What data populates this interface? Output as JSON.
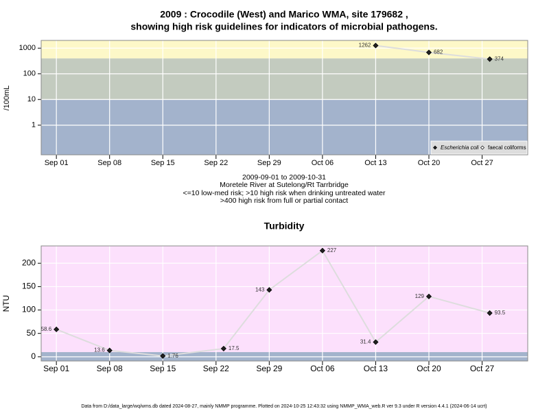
{
  "chart_data": [
    {
      "type": "line",
      "title": [
        "2009 : Crocodile (West) and Marico WMA, site 179682 ,",
        "showing high risk guidelines for indicators of microbial pathogens."
      ],
      "y_label": "/100mL",
      "log_y": true,
      "x": [
        "2009-10-13",
        "2009-10-20",
        "2009-10-28"
      ],
      "series": [
        {
          "name": "Escherichia coli",
          "color": "#222222",
          "line_color": "#dddddd",
          "values": [
            1262,
            682,
            374
          ]
        },
        {
          "name": "faecal coliforms",
          "color": "#ffffff",
          "line_color": "#dddddd",
          "values": [
            null,
            null,
            null
          ]
        }
      ],
      "xlim": [
        "2009-08-30",
        "2009-11-02"
      ],
      "xticks": [
        {
          "value": "2009-09-01",
          "label": "Sep 01"
        },
        {
          "value": "2009-09-08",
          "label": "Sep 08"
        },
        {
          "value": "2009-09-15",
          "label": "Sep 15"
        },
        {
          "value": "2009-09-22",
          "label": "Sep 22"
        },
        {
          "value": "2009-09-29",
          "label": "Sep 29"
        },
        {
          "value": "2009-10-06",
          "label": "Oct 06"
        },
        {
          "value": "2009-10-13",
          "label": "Oct 13"
        },
        {
          "value": "2009-10-20",
          "label": "Oct 20"
        },
        {
          "value": "2009-10-27",
          "label": "Oct 27"
        }
      ],
      "ylim": [
        0.07,
        2000
      ],
      "yticks": [
        1,
        10,
        100,
        1000
      ],
      "grid": true,
      "legend": "bottom-right",
      "bands": [
        {
          "from": null,
          "to": 10,
          "color": "#a3b3cc"
        },
        {
          "from": 10,
          "to": 400,
          "color": "#c3cbbf"
        },
        {
          "from": 400,
          "to": null,
          "color": "#fdf8c8"
        }
      ]
    },
    {
      "type": "line",
      "title": "Turbidity",
      "y_label": "NTU",
      "log_y": false,
      "x": [
        "2009-09-01",
        "2009-09-08",
        "2009-09-15",
        "2009-09-23",
        "2009-09-29",
        "2009-10-06",
        "2009-10-13",
        "2009-10-20",
        "2009-10-28"
      ],
      "series": [
        {
          "name": "Turbidity",
          "color": "#222222",
          "line_color": "#dddddd",
          "values": [
            58.6,
            13.6,
            1.76,
            17.5,
            143,
            227,
            31.4,
            129,
            93.5
          ]
        }
      ],
      "xlim": [
        "2009-08-30",
        "2009-11-02"
      ],
      "xticks": [
        {
          "value": "2009-09-01",
          "label": "Sep 01"
        },
        {
          "value": "2009-09-08",
          "label": "Sep 08"
        },
        {
          "value": "2009-09-15",
          "label": "Sep 15"
        },
        {
          "value": "2009-09-22",
          "label": "Sep 22"
        },
        {
          "value": "2009-09-29",
          "label": "Sep 29"
        },
        {
          "value": "2009-10-06",
          "label": "Oct 06"
        },
        {
          "value": "2009-10-13",
          "label": "Oct 13"
        },
        {
          "value": "2009-10-20",
          "label": "Oct 20"
        },
        {
          "value": "2009-10-27",
          "label": "Oct 27"
        }
      ],
      "ylim": [
        -9,
        237
      ],
      "yticks": [
        0,
        50,
        100,
        150,
        200
      ],
      "grid": true,
      "bands": [
        {
          "from": null,
          "to": 10,
          "color": "#a3b3cc"
        },
        {
          "from": 10,
          "to": null,
          "color": "#fce0fc"
        }
      ]
    }
  ],
  "caption": [
    "2009-09-01 to 2009-10-31",
    "Moretele River at Sutelong/Rt Tarrbridge",
    "<=10 low-med risk; >10 high risk when drinking untreated water",
    ">400 high risk from full or partial contact"
  ],
  "footnote": "Data from D:/data_large/wq/wms.db dated 2024-08-27, mainly NMMP programme. Plotted on 2024-10-25 12:43:32 using NMMP_WMA_web.R ver 9.3 under R version 4.4.1 (2024-06-14 ucrt)"
}
